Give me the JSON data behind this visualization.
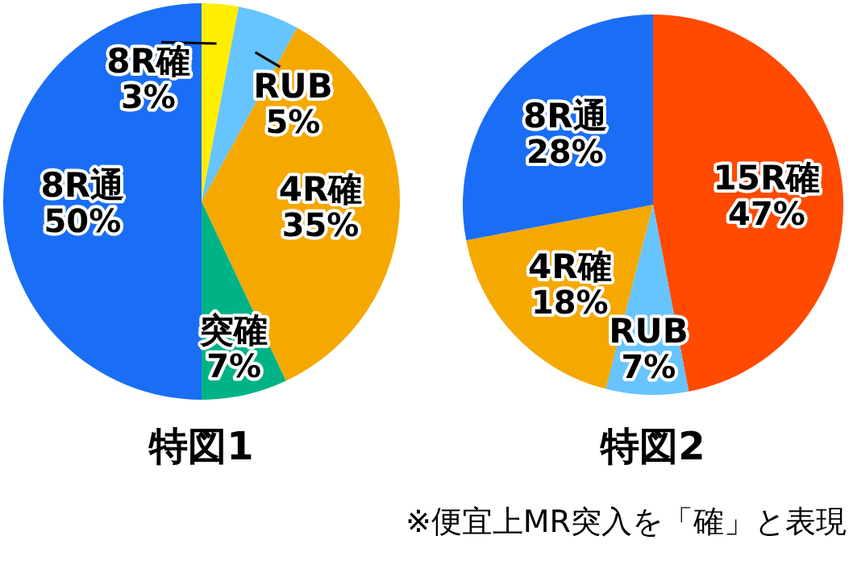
{
  "chart_data": [
    {
      "type": "pie",
      "title": "特図1",
      "categories": [
        "8R確",
        "RUB",
        "4R確",
        "突確",
        "8R通"
      ],
      "values": [
        3,
        5,
        35,
        7,
        50
      ],
      "value_labels": [
        "3%",
        "5%",
        "35%",
        "7%",
        "50%"
      ],
      "colors": [
        "#ffee00",
        "#66c4ff",
        "#f5a800",
        "#00b386",
        "#1a6ef5"
      ]
    },
    {
      "type": "pie",
      "title": "特図2",
      "categories": [
        "15R確",
        "RUB",
        "4R確",
        "8R通"
      ],
      "values": [
        47,
        7,
        18,
        28
      ],
      "value_labels": [
        "47%",
        "7%",
        "18%",
        "28%"
      ],
      "colors": [
        "#ff4a00",
        "#66c4ff",
        "#f5a800",
        "#1a6ef5"
      ],
      "annotations": [
        "※便宜上MR突入を「確」と表現"
      ]
    }
  ]
}
